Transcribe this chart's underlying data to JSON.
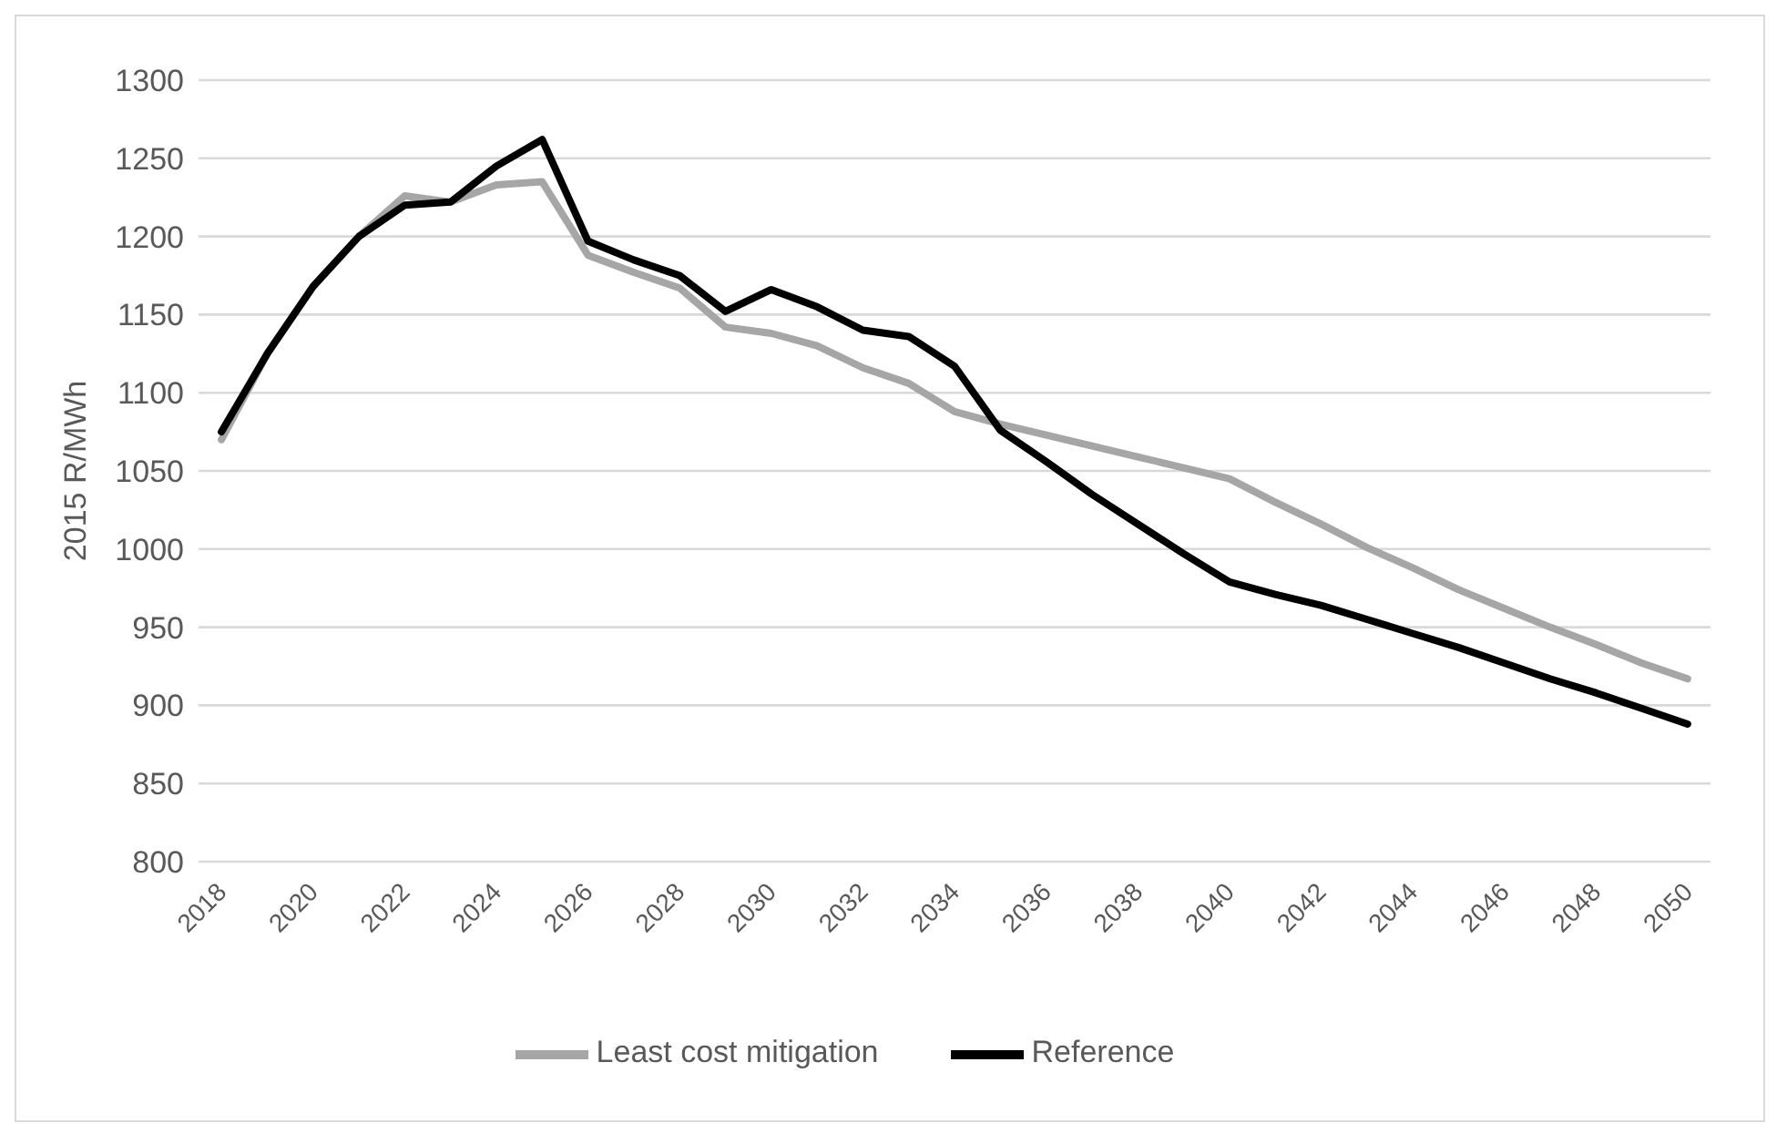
{
  "chart_data": {
    "type": "line",
    "ylabel": "2015 R/MWh",
    "x": [
      2018,
      2019,
      2020,
      2021,
      2022,
      2023,
      2024,
      2025,
      2026,
      2027,
      2028,
      2029,
      2030,
      2031,
      2032,
      2033,
      2034,
      2035,
      2036,
      2037,
      2038,
      2039,
      2040,
      2041,
      2042,
      2043,
      2044,
      2045,
      2046,
      2047,
      2048,
      2049,
      2050
    ],
    "xlim": [
      2017.5,
      2050.5
    ],
    "xticks": [
      2018,
      2020,
      2022,
      2024,
      2026,
      2028,
      2030,
      2032,
      2034,
      2036,
      2038,
      2040,
      2042,
      2044,
      2046,
      2048,
      2050
    ],
    "ylim": [
      800,
      1300
    ],
    "yticks": [
      800,
      850,
      900,
      950,
      1000,
      1050,
      1100,
      1150,
      1200,
      1250,
      1300
    ],
    "grid": "y",
    "legend": "bottom",
    "marker": "none",
    "line_style": "solid",
    "series": [
      {
        "name": "Least cost mitigation",
        "color": "#a6a6a6",
        "values": [
          1070,
          1125,
          1168,
          1200,
          1226,
          1222,
          1233,
          1235,
          1188,
          1177,
          1167,
          1142,
          1138,
          1130,
          1116,
          1106,
          1088,
          1080,
          1073,
          1066,
          1059,
          1052,
          1045,
          1030,
          1016,
          1001,
          988,
          974,
          962,
          950,
          939,
          927,
          917
        ]
      },
      {
        "name": "Reference",
        "color": "#000000",
        "values": [
          1075,
          1125,
          1168,
          1200,
          1220,
          1222,
          1245,
          1262,
          1197,
          1185,
          1175,
          1152,
          1166,
          1155,
          1140,
          1136,
          1117,
          1076,
          1056,
          1035,
          1016,
          997,
          979,
          971,
          964,
          955,
          946,
          937,
          927,
          917,
          908,
          898,
          888
        ]
      }
    ]
  }
}
